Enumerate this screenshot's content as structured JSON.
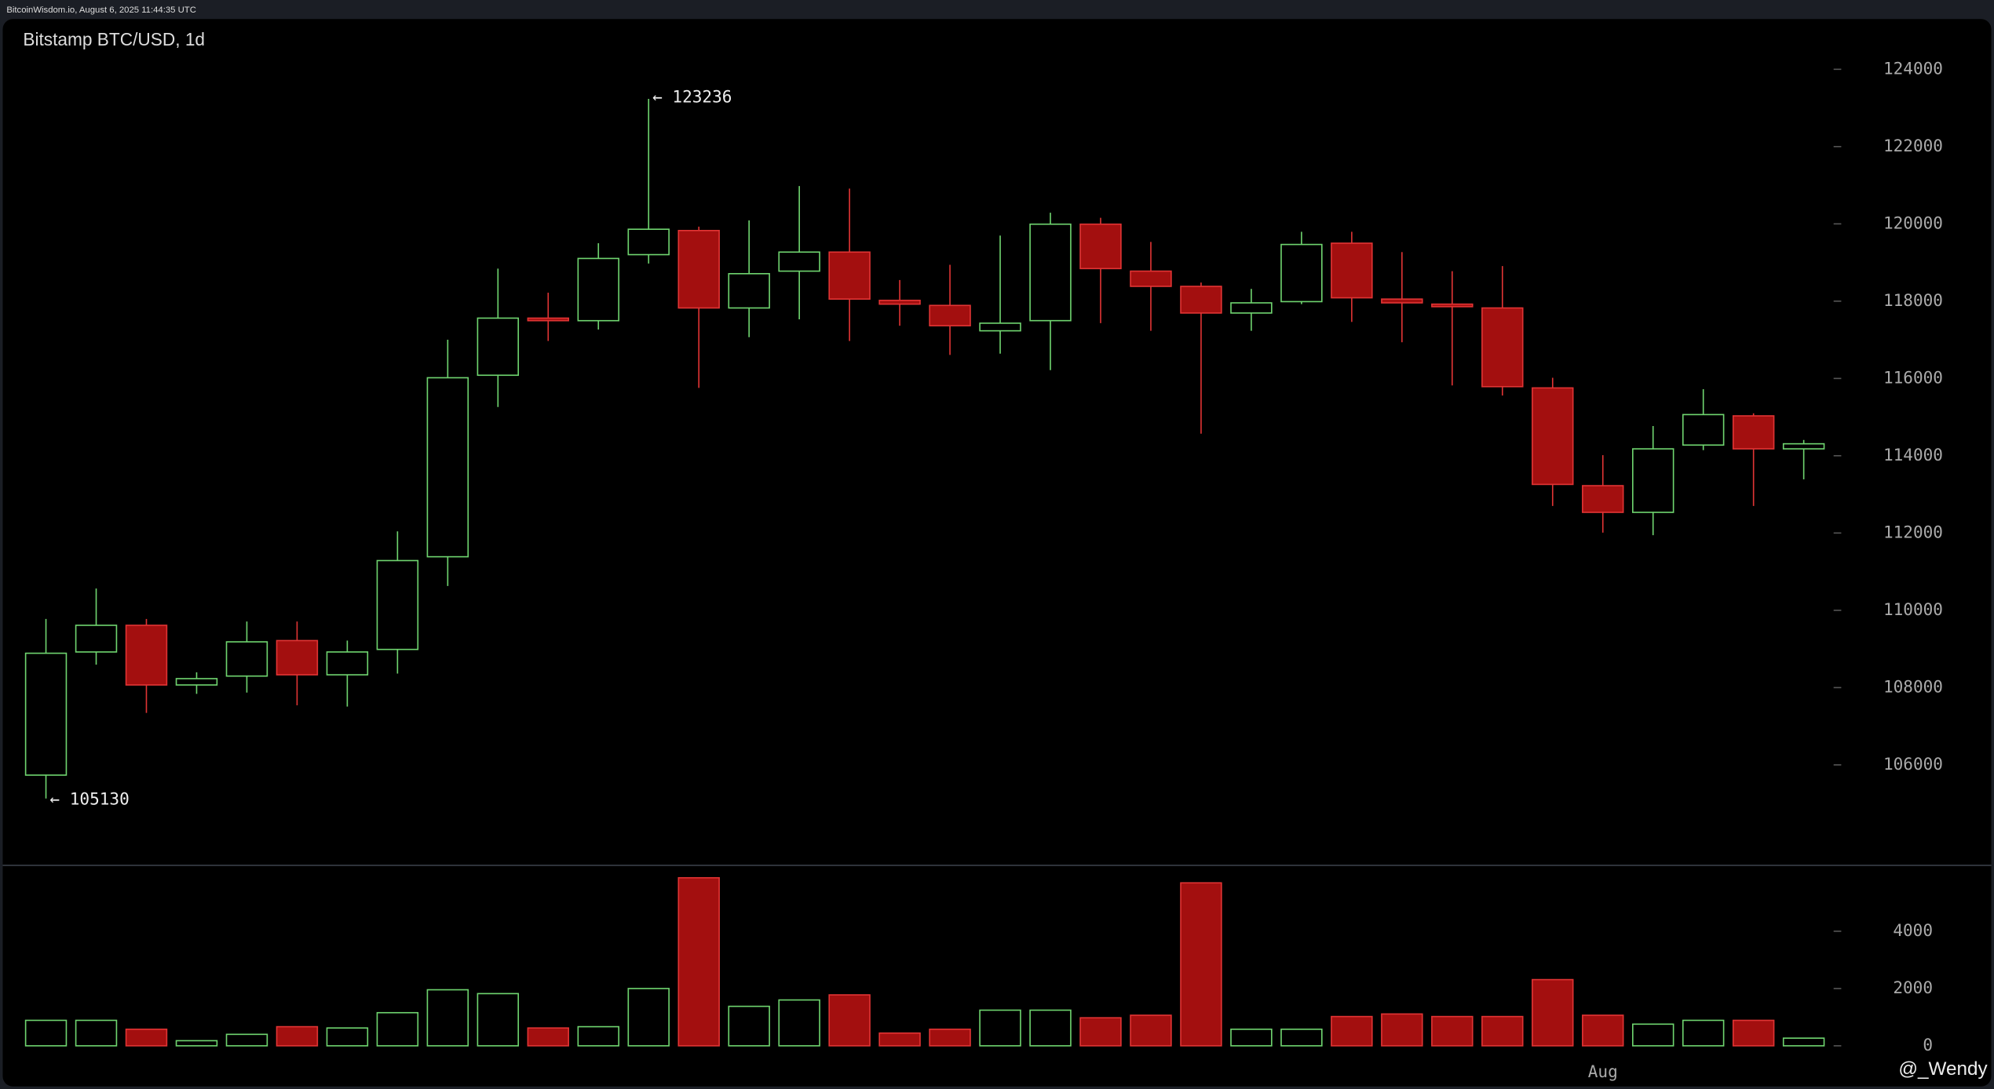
{
  "header": "BitcoinWisdom.io, August 6, 2025 11:44:35 UTC",
  "watermark": "@_Wendy",
  "chart_data": {
    "type": "candlestick",
    "title": "Bitstamp BTC/USD, 1d",
    "annotations": [
      "← 123236",
      "← 105130"
    ],
    "categories": [
      null,
      null,
      null,
      null,
      null,
      null,
      null,
      null,
      null,
      null,
      null,
      null,
      null,
      null,
      null,
      null,
      null,
      null,
      null,
      null,
      null,
      null,
      null,
      null,
      null,
      null,
      null,
      null,
      null,
      null,
      null,
      "Aug",
      null,
      null,
      null,
      null
    ],
    "open": [
      105735,
      108922,
      109612,
      108068,
      108298,
      109217,
      108331,
      108988,
      111386,
      116083,
      117561,
      117495,
      119204,
      119828,
      117824,
      118777,
      119270,
      118021,
      117890,
      117233,
      117496,
      119992,
      118777,
      118383,
      117693,
      117988,
      119500,
      118054,
      117923,
      117824,
      115755,
      113225,
      112535,
      114276,
      115032,
      114178
    ],
    "high": [
      109776,
      110564,
      109776,
      108396,
      109710,
      109710,
      109217,
      112043,
      117003,
      118843,
      118219,
      119500,
      123236,
      119927,
      120091,
      120978,
      120912,
      118547,
      118941,
      119697,
      120288,
      120157,
      119533,
      118481,
      118317,
      119795,
      119795,
      119270,
      118777,
      118908,
      116018,
      114014,
      114769,
      115722,
      115098,
      114408
    ],
    "low": [
      105130,
      108593,
      107345,
      107838,
      107871,
      107542,
      107509,
      108363,
      110630,
      115262,
      116970,
      117266,
      118974,
      115755,
      117069,
      117529,
      116970,
      117364,
      116609,
      116642,
      116215,
      117430,
      117233,
      114572,
      117233,
      117923,
      117463,
      116937,
      115820,
      115558,
      112700,
      112010,
      111944,
      114145,
      112700,
      113389
    ],
    "close": [
      108889,
      109612,
      108068,
      108232,
      109184,
      108331,
      108922,
      111287,
      116018,
      117561,
      117495,
      119105,
      119861,
      117824,
      118711,
      119270,
      118054,
      117923,
      117364,
      117430,
      119992,
      118843,
      118383,
      117693,
      117956,
      119467,
      118087,
      117956,
      117857,
      115788,
      113258,
      112535,
      114178,
      115065,
      114178,
      114309
    ],
    "volume": [
      889,
      889,
      578,
      178,
      400,
      667,
      622,
      1156,
      1956,
      1822,
      622,
      667,
      2000,
      5867,
      1378,
      1600,
      1778,
      444,
      578,
      1244,
      1244,
      978,
      1067,
      5689,
      578,
      578,
      1022,
      1111,
      1022,
      1022,
      2311,
      1067,
      756,
      889,
      889,
      267
    ],
    "up_color": "#6fd46f",
    "down_color": "#a30f0f",
    "down_edge_color": "#e03434",
    "ylim": [
      103400,
      125300
    ],
    "yticks": [
      106000,
      108000,
      110000,
      112000,
      114000,
      116000,
      118000,
      120000,
      122000,
      124000
    ],
    "volume_ylim": [
      0,
      6300
    ],
    "volume_yticks": [
      0,
      2000,
      4000
    ]
  }
}
